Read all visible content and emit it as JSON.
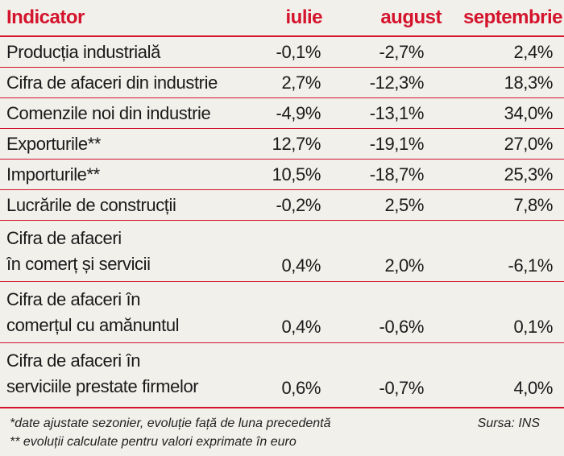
{
  "chart_data": {
    "type": "table",
    "columns": [
      "Indicator",
      "iulie",
      "august",
      "septembrie"
    ],
    "rows": [
      {
        "label": [
          "Producția industrială"
        ],
        "values": [
          "-0,1%",
          "-2,7%",
          "2,4%"
        ]
      },
      {
        "label": [
          "Cifra de afaceri din industrie"
        ],
        "values": [
          "2,7%",
          "-12,3%",
          "18,3%"
        ]
      },
      {
        "label": [
          "Comenzile noi din industrie"
        ],
        "values": [
          "-4,9%",
          "-13,1%",
          "34,0%"
        ]
      },
      {
        "label": [
          "Exporturile**"
        ],
        "values": [
          "12,7%",
          "-19,1%",
          "27,0%"
        ]
      },
      {
        "label": [
          "Importurile**"
        ],
        "values": [
          "10,5%",
          "-18,7%",
          "25,3%"
        ]
      },
      {
        "label": [
          "Lucrările de construcții"
        ],
        "values": [
          "-0,2%",
          "2,5%",
          "7,8%"
        ]
      },
      {
        "label": [
          "Cifra de afaceri",
          "în comerț și servicii"
        ],
        "values": [
          "0,4%",
          "2,0%",
          "-6,1%"
        ]
      },
      {
        "label": [
          "Cifra de afaceri în",
          "comerțul cu amănuntul"
        ],
        "values": [
          "0,4%",
          "-0,6%",
          "0,1%"
        ]
      },
      {
        "label": [
          "Cifra de afaceri în",
          "serviciile prestate firmelor"
        ],
        "values": [
          "0,6%",
          "-0,7%",
          "4,0%"
        ]
      }
    ]
  },
  "footnotes": {
    "note1": "*date ajustate sezonier, evoluție față de luna precedentă",
    "note2": "** evoluții calculate pentru valori exprimate în euro",
    "source": "Sursa: INS"
  },
  "colors": {
    "accent": "#d4142c",
    "background": "#f1f0eb",
    "text": "#1a1a1a"
  }
}
